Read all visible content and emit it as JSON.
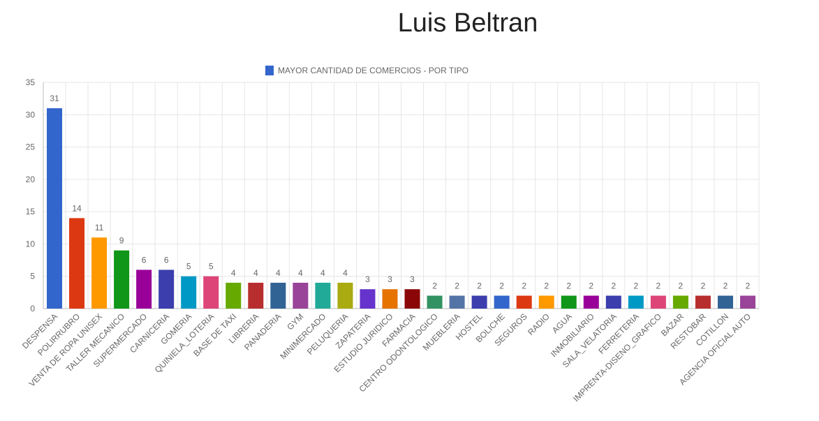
{
  "page": {
    "title": "Luis Beltran"
  },
  "chart_data": {
    "type": "bar",
    "title": "",
    "xlabel": "",
    "ylabel": "",
    "ylim": [
      0,
      35
    ],
    "yticks": [
      0,
      5,
      10,
      15,
      20,
      25,
      30,
      35
    ],
    "grid": true,
    "legend_position": "top-center",
    "series": [
      {
        "name": "MAYOR CANTIDAD DE COMERCIOS - POR TIPO",
        "legend_color": "#3366cc",
        "values": [
          31,
          14,
          11,
          9,
          6,
          6,
          5,
          5,
          4,
          4,
          4,
          4,
          4,
          4,
          3,
          3,
          3,
          2,
          2,
          2,
          2,
          2,
          2,
          2,
          2,
          2,
          2,
          2,
          2,
          2,
          2,
          2
        ]
      }
    ],
    "categories": [
      "DESPENSA",
      "POLIRRUBRO",
      "VENTA DE ROPA UNISEX",
      "TALLER MECANICO",
      "SUPERMERCADO",
      "CARNICERIA",
      "GOMERIA",
      "QUINIELA_LOTERIA",
      "BASE DE TAXI",
      "LIBRERIA",
      "PANADERIA",
      "GYM",
      "MINIMERCADO",
      "PELUQUERIA",
      "ZAPATERIA",
      "ESTUDIO JURIDICO",
      "FARMACIA",
      "CENTRO ODONTOLOGICO",
      "MUEBLERIA",
      "HOSTEL",
      "BOLICHE",
      "SEGUROS",
      "RADIO",
      "AGUA",
      "INMOBILIARIO",
      "SALA_VELATORIA",
      "FERRETERIA",
      "IMPRENTA-DISENO_GRAFICO",
      "BAZAR",
      "RESTOBAR",
      "COTILLON",
      "AGENCIA OFICIAL AUTO"
    ],
    "bar_colors": [
      "#3366cc",
      "#dc3912",
      "#ff9900",
      "#109618",
      "#990099",
      "#3b3eac",
      "#0099c6",
      "#dd4477",
      "#66aa00",
      "#b82e2e",
      "#316395",
      "#994499",
      "#22aa99",
      "#aaaa11",
      "#6633cc",
      "#e67300",
      "#8b0707",
      "#329262",
      "#5574a6",
      "#3b3eac",
      "#3366cc",
      "#dc3912",
      "#ff9900",
      "#109618",
      "#990099",
      "#3b3eac",
      "#0099c6",
      "#dd4477",
      "#66aa00",
      "#b82e2e",
      "#316395",
      "#994499"
    ]
  }
}
